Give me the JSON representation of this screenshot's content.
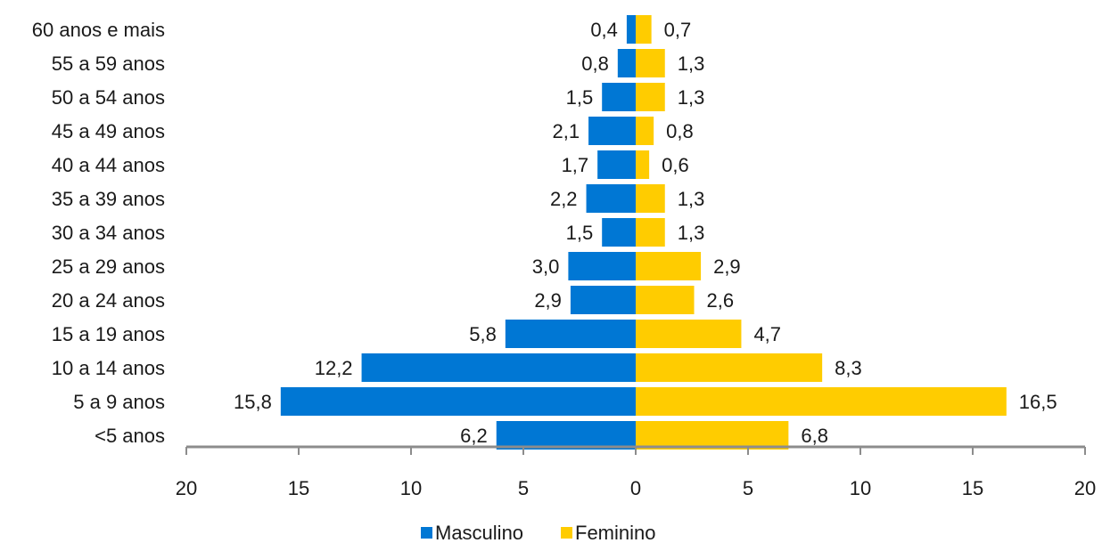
{
  "chart_data": {
    "type": "bar",
    "orientation": "horizontal",
    "layout": "population-pyramid",
    "categories": [
      "60 anos e mais",
      "55 a 59 anos",
      "50 a 54 anos",
      "45 a 49 anos",
      "40 a 44 anos",
      "35 a 39 anos",
      "30 a 34 anos",
      "25 a 29 anos",
      "20 a 24 anos",
      "15 a 19 anos",
      "10 a 14 anos",
      "5 a 9 anos",
      "<5 anos"
    ],
    "series": [
      {
        "name": "Masculino",
        "color": "#0077d4",
        "side": "left",
        "values": [
          0.4,
          0.8,
          1.5,
          2.1,
          1.7,
          2.2,
          1.5,
          3.0,
          2.9,
          5.8,
          12.2,
          15.8,
          6.2
        ],
        "labels": [
          "0,4",
          "0,8",
          "1,5",
          "2,1",
          "1,7",
          "2,2",
          "1,5",
          "3,0",
          "2,9",
          "5,8",
          "12,2",
          "15,8",
          "6,2"
        ]
      },
      {
        "name": "Feminino",
        "color": "#ffcc00",
        "side": "right",
        "values": [
          0.7,
          1.3,
          1.3,
          0.8,
          0.6,
          1.3,
          1.3,
          2.9,
          2.6,
          4.7,
          8.3,
          16.5,
          6.8
        ],
        "labels": [
          "0,7",
          "1,3",
          "1,3",
          "0,8",
          "0,6",
          "1,3",
          "1,3",
          "2,9",
          "2,6",
          "4,7",
          "8,3",
          "16,5",
          "6,8"
        ]
      }
    ],
    "xlim": [
      -20,
      20
    ],
    "xticks": [
      -20,
      -15,
      -10,
      -5,
      0,
      5,
      10,
      15,
      20
    ],
    "xtick_labels": [
      "20",
      "15",
      "10",
      "5",
      "0",
      "5",
      "10",
      "15",
      "20"
    ],
    "grid": false,
    "legend_position": "bottom-center",
    "title": "",
    "xlabel": "",
    "ylabel": ""
  }
}
